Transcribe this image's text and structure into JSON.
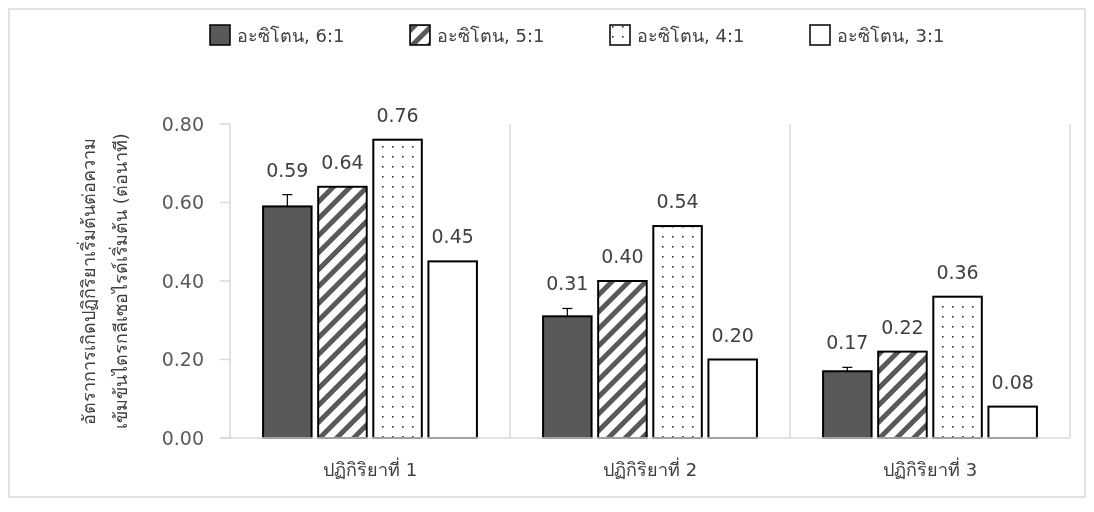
{
  "chart_data": {
    "type": "bar",
    "ylabel": "อัตราการเกิดปฏิกิริยาเริ่มต้นต่อความ\nเข้มข้นไตรกลีเซอไรด์เริ่มต้น (ต่อนาที)",
    "categories": [
      "ปฏิกิริยาที่ 1",
      "ปฏิกิริยาที่ 2",
      "ปฏิกิริยาที่ 3"
    ],
    "series": [
      {
        "name": "อะซิโตน, 6:1",
        "color": "#595959",
        "values": [
          0.59,
          0.31,
          0.17
        ],
        "value_labels": [
          "0.59",
          "0.31",
          "0.17"
        ],
        "errors": [
          [
            0.59,
            0.62
          ],
          [
            0.31,
            0.33
          ],
          [
            0.17,
            0.18
          ]
        ]
      },
      {
        "name": "อะซิโตน, 5:1",
        "color": "#595959",
        "values": [
          0.64,
          0.4,
          0.22
        ],
        "value_labels": [
          "0.64",
          "0.40",
          "0.22"
        ]
      },
      {
        "name": "อะซิโตน, 4:1",
        "color": "#ffffff",
        "values": [
          0.76,
          0.54,
          0.36
        ],
        "value_labels": [
          "0.76",
          "0.54",
          "0.36"
        ]
      },
      {
        "name": "อะซิโตน, 3:1",
        "color": "#ffffff",
        "values": [
          0.45,
          0.2,
          0.08
        ],
        "value_labels": [
          "0.45",
          "0.20",
          "0.08"
        ]
      }
    ],
    "ylim": [
      0,
      0.8
    ],
    "yticks": [
      {
        "value": 0,
        "label": "0.00"
      },
      {
        "value": 0.2,
        "label": "0.20"
      },
      {
        "value": 0.4,
        "label": "0.40"
      },
      {
        "value": 0.6,
        "label": "0.60"
      },
      {
        "value": 0.8,
        "label": "0.80"
      }
    ],
    "legend": "top",
    "grid": false
  }
}
